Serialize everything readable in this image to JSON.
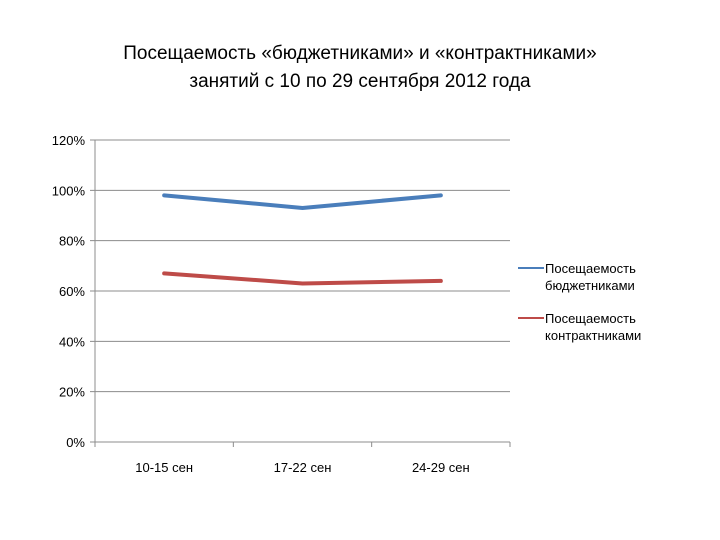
{
  "chart_data": {
    "type": "line",
    "title_line1": "Посещаемость «бюджетниками» и «контрактниками»",
    "title_line2": "занятий с 10 по 29 сентября 2012 года",
    "categories": [
      "10-15 сен",
      "17-22 сен",
      "24-29 сен"
    ],
    "y_ticks": [
      "0%",
      "20%",
      "40%",
      "60%",
      "80%",
      "100%",
      "120%"
    ],
    "ylim": [
      0,
      120
    ],
    "grid": true,
    "legend_position": "right",
    "series": [
      {
        "name_line1": "Посещаемость",
        "name_line2": "бюджетниками",
        "color": "#4a7ebb",
        "values": [
          98,
          93,
          98
        ]
      },
      {
        "name_line1": "Посещаемость",
        "name_line2": "контрактниками",
        "color": "#be4b48",
        "values": [
          67,
          63,
          64
        ]
      }
    ]
  }
}
